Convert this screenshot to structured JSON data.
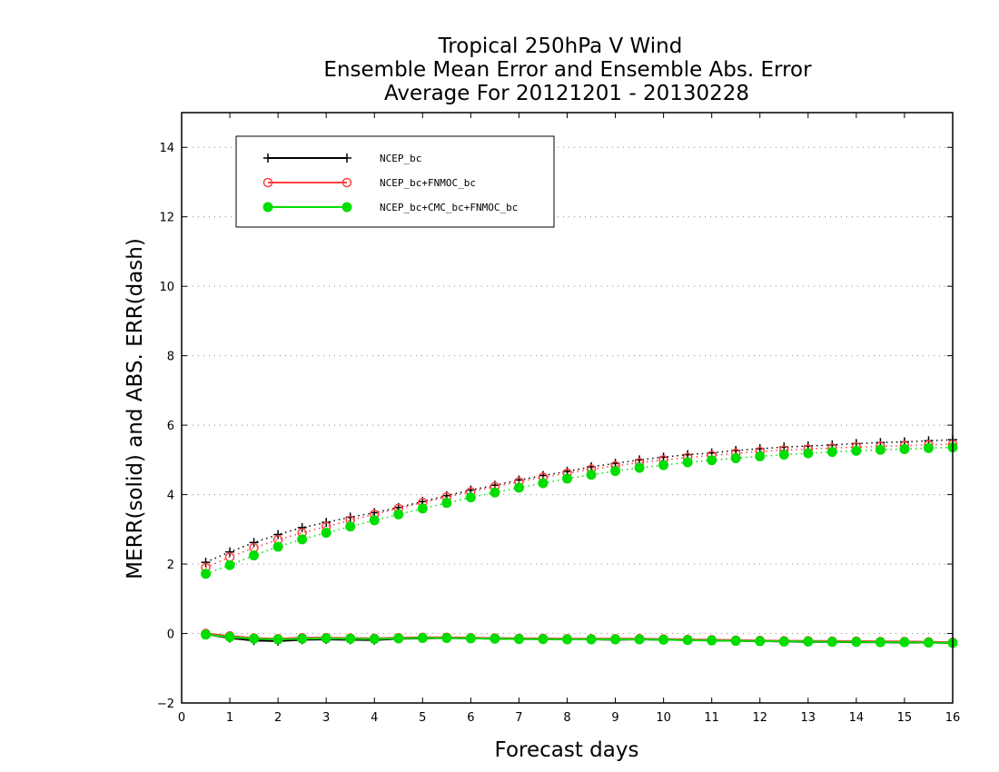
{
  "chart_data": {
    "type": "line",
    "title_lines": [
      "Tropical 250hPa V Wind",
      "Ensemble Mean Error and Ensemble Abs. Error",
      "Average For 20121201 - 20130228"
    ],
    "xlabel": "Forecast days",
    "ylabel": "MERR(solid) and ABS. ERR(dash)",
    "xlim": [
      0,
      16
    ],
    "ylim": [
      -2,
      15
    ],
    "xticks": [
      0,
      1,
      2,
      3,
      4,
      5,
      6,
      7,
      8,
      9,
      10,
      11,
      12,
      13,
      14,
      15,
      16
    ],
    "yticks": [
      -2,
      0,
      2,
      4,
      6,
      8,
      10,
      12,
      14
    ],
    "grid": "horizontal dotted",
    "legend_position": "top-left",
    "x": [
      0.5,
      1,
      1.5,
      2,
      2.5,
      3,
      3.5,
      4,
      4.5,
      5,
      5.5,
      6,
      6.5,
      7,
      7.5,
      8,
      8.5,
      9,
      9.5,
      10,
      10.5,
      11,
      11.5,
      12,
      12.5,
      13,
      13.5,
      14,
      14.5,
      15,
      15.5,
      16
    ],
    "series": [
      {
        "name": "NCEP_bc",
        "color": "#000000",
        "marker": "plus",
        "merr": [
          -0.02,
          -0.13,
          -0.2,
          -0.22,
          -0.18,
          -0.17,
          -0.18,
          -0.19,
          -0.15,
          -0.14,
          -0.13,
          -0.14,
          -0.15,
          -0.16,
          -0.16,
          -0.17,
          -0.17,
          -0.18,
          -0.17,
          -0.18,
          -0.19,
          -0.2,
          -0.21,
          -0.22,
          -0.23,
          -0.24,
          -0.24,
          -0.25,
          -0.25,
          -0.26,
          -0.26,
          -0.27
        ],
        "abs_err": [
          2.05,
          2.35,
          2.62,
          2.85,
          3.05,
          3.2,
          3.35,
          3.48,
          3.63,
          3.8,
          3.97,
          4.13,
          4.27,
          4.42,
          4.55,
          4.67,
          4.8,
          4.9,
          5.0,
          5.08,
          5.15,
          5.2,
          5.27,
          5.32,
          5.37,
          5.4,
          5.43,
          5.47,
          5.5,
          5.52,
          5.55,
          5.58
        ]
      },
      {
        "name": "NCEP_bc+FNMOC_bc",
        "color": "#ff4040",
        "marker": "open-circle",
        "merr": [
          0.0,
          -0.07,
          -0.13,
          -0.15,
          -0.12,
          -0.12,
          -0.13,
          -0.14,
          -0.12,
          -0.11,
          -0.11,
          -0.12,
          -0.13,
          -0.14,
          -0.14,
          -0.15,
          -0.15,
          -0.15,
          -0.15,
          -0.16,
          -0.17,
          -0.18,
          -0.19,
          -0.2,
          -0.21,
          -0.21,
          -0.22,
          -0.22,
          -0.23,
          -0.23,
          -0.24,
          -0.25
        ],
        "abs_err": [
          1.9,
          2.2,
          2.47,
          2.7,
          2.9,
          3.08,
          3.26,
          3.43,
          3.6,
          3.77,
          3.93,
          4.08,
          4.23,
          4.37,
          4.5,
          4.62,
          4.73,
          4.83,
          4.92,
          5.0,
          5.07,
          5.13,
          5.19,
          5.24,
          5.28,
          5.31,
          5.34,
          5.37,
          5.39,
          5.41,
          5.43,
          5.45
        ]
      },
      {
        "name": "NCEP_bc+CMC_bc+FNMOC_bc",
        "color": "#00dd00",
        "marker": "filled-circle",
        "merr": [
          -0.03,
          -0.1,
          -0.15,
          -0.17,
          -0.15,
          -0.14,
          -0.15,
          -0.16,
          -0.14,
          -0.13,
          -0.13,
          -0.14,
          -0.15,
          -0.16,
          -0.16,
          -0.17,
          -0.17,
          -0.17,
          -0.17,
          -0.18,
          -0.19,
          -0.2,
          -0.21,
          -0.22,
          -0.23,
          -0.23,
          -0.24,
          -0.24,
          -0.25,
          -0.25,
          -0.26,
          -0.27
        ],
        "abs_err": [
          1.72,
          1.97,
          2.25,
          2.5,
          2.71,
          2.9,
          3.08,
          3.26,
          3.43,
          3.6,
          3.76,
          3.92,
          4.06,
          4.2,
          4.33,
          4.46,
          4.57,
          4.68,
          4.77,
          4.85,
          4.93,
          4.99,
          5.05,
          5.1,
          5.15,
          5.19,
          5.23,
          5.26,
          5.29,
          5.31,
          5.34,
          5.36
        ]
      }
    ]
  }
}
